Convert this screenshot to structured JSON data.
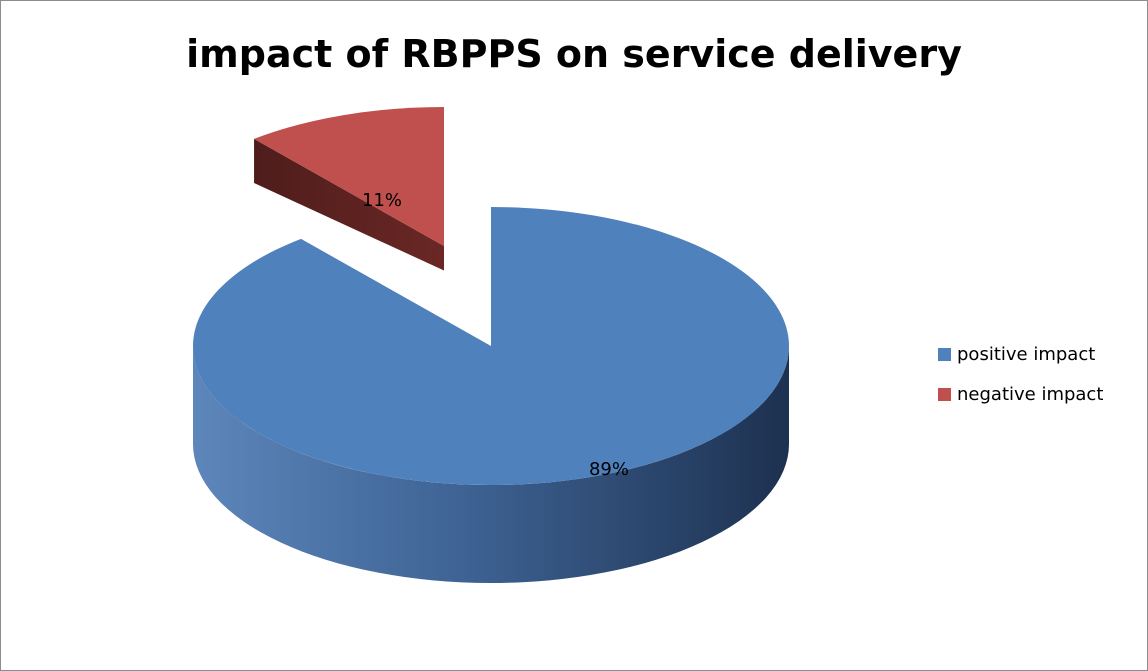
{
  "chart_data": {
    "type": "pie",
    "title": "impact of RBPPS on service delivery",
    "slices": [
      {
        "label": "positive impact",
        "value": 89,
        "display": "89%",
        "color": "#4F81BD",
        "exploded": false
      },
      {
        "label": "negative impact",
        "value": 11,
        "display": "11%",
        "color": "#C0504D",
        "exploded": true
      }
    ],
    "legend": {
      "position": "right"
    },
    "style": "3d"
  }
}
